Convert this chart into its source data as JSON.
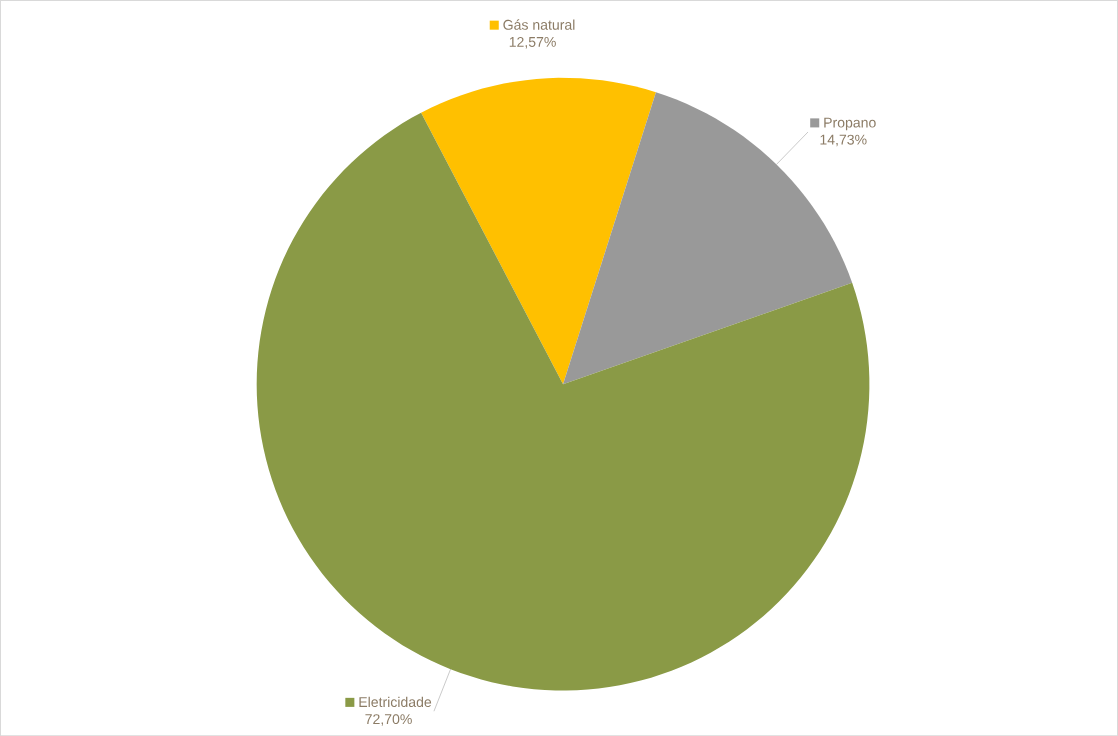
{
  "chart_data": {
    "type": "pie",
    "categories": [
      "Gás natural",
      "Propano",
      "Eletricidade"
    ],
    "values": [
      12.57,
      14.73,
      72.7
    ],
    "value_labels": [
      "12,57%",
      "14,73%",
      "72,70%"
    ],
    "colors": [
      "#ffc000",
      "#999999",
      "#8a9a46"
    ],
    "legend": "top"
  }
}
